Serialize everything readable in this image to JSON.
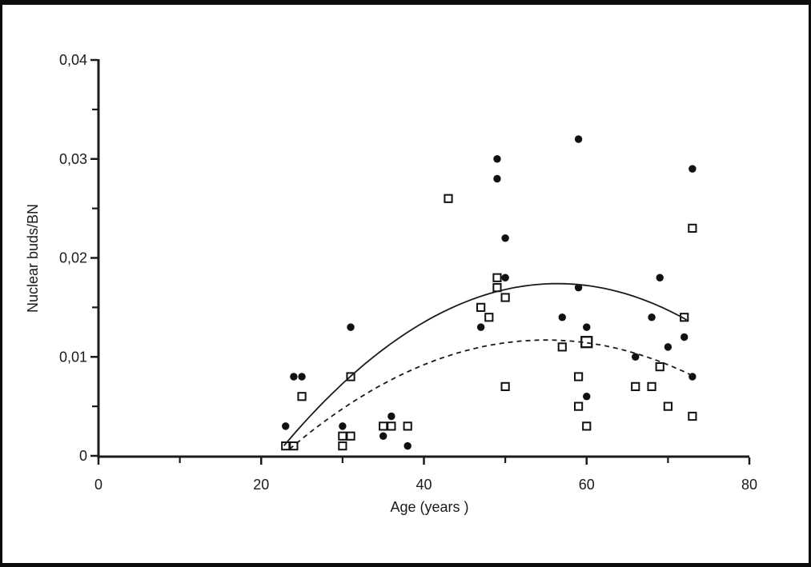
{
  "figure": {
    "background": "#ffffff",
    "frame_color": "#0d0d0d",
    "ink_color": "#1a1a1a"
  },
  "chart_data": {
    "type": "scatter",
    "title": "",
    "xlabel": "Age (years )",
    "ylabel": "Nuclear buds/BN",
    "xlim": [
      0,
      80
    ],
    "ylim": [
      0,
      0.04
    ],
    "grid": false,
    "legend": "none",
    "decimal_separator": ",",
    "x_ticks": {
      "major": [
        0,
        20,
        40,
        60,
        80
      ],
      "minor": [
        10,
        30,
        50,
        70
      ],
      "labels": [
        "0",
        "20",
        "40",
        "60",
        "80"
      ]
    },
    "y_ticks": {
      "major": [
        0,
        0.01,
        0.02,
        0.03,
        0.04
      ],
      "minor": [
        0.005,
        0.015,
        0.025,
        0.035
      ],
      "labels": [
        "0",
        "0,01",
        "0,02",
        "0,03",
        "0,04"
      ]
    },
    "series": [
      {
        "name": "filled-circles",
        "marker": "filled-circle",
        "color": "#111111",
        "points": [
          [
            23,
            0.003
          ],
          [
            24,
            0.008
          ],
          [
            25,
            0.008
          ],
          [
            30,
            0.003
          ],
          [
            31,
            0.013
          ],
          [
            35,
            0.002
          ],
          [
            36,
            0.004
          ],
          [
            38,
            0.001
          ],
          [
            47,
            0.013
          ],
          [
            49,
            0.03
          ],
          [
            49,
            0.028
          ],
          [
            50,
            0.022
          ],
          [
            50,
            0.018
          ],
          [
            57,
            0.014
          ],
          [
            59,
            0.032
          ],
          [
            59,
            0.017
          ],
          [
            60,
            0.013
          ],
          [
            60,
            0.006
          ],
          [
            66,
            0.01
          ],
          [
            68,
            0.014
          ],
          [
            69,
            0.018
          ],
          [
            70,
            0.011
          ],
          [
            72,
            0.012
          ],
          [
            73,
            0.029
          ],
          [
            73,
            0.008
          ]
        ]
      },
      {
        "name": "open-squares",
        "marker": "open-square",
        "color": "#111111",
        "points": [
          [
            23,
            0.001
          ],
          [
            24,
            0.001
          ],
          [
            25,
            0.006
          ],
          [
            30,
            0.002
          ],
          [
            30,
            0.001
          ],
          [
            31,
            0.002
          ],
          [
            31,
            0.008
          ],
          [
            35,
            0.003
          ],
          [
            36,
            0.003
          ],
          [
            38,
            0.003
          ],
          [
            43,
            0.026
          ],
          [
            47,
            0.015
          ],
          [
            48,
            0.014
          ],
          [
            49,
            0.018
          ],
          [
            49,
            0.017
          ],
          [
            50,
            0.016
          ],
          [
            50,
            0.007
          ],
          [
            57,
            0.011
          ],
          [
            59,
            0.008
          ],
          [
            59,
            0.005
          ],
          [
            60,
            0.003
          ],
          [
            66,
            0.007
          ],
          [
            68,
            0.007
          ],
          [
            69,
            0.009
          ],
          [
            70,
            0.005
          ],
          [
            72,
            0.014
          ],
          [
            73,
            0.023
          ],
          [
            73,
            0.004
          ]
        ],
        "large_points": [
          [
            60,
            0.0115
          ]
        ]
      }
    ],
    "trend_lines": [
      {
        "name": "solid-trend",
        "style": "solid",
        "model": "quadratic",
        "peak_age": 56.4,
        "peak_value": 0.0174,
        "curvature": -1.45e-05,
        "age_range": [
          22.8,
          72.5
        ]
      },
      {
        "name": "dashed-trend",
        "style": "dashed",
        "model": "quadratic",
        "peak_age": 55,
        "peak_value": 0.0117,
        "curvature": -1.11e-05,
        "age_range": [
          23.5,
          73.4
        ]
      }
    ]
  }
}
